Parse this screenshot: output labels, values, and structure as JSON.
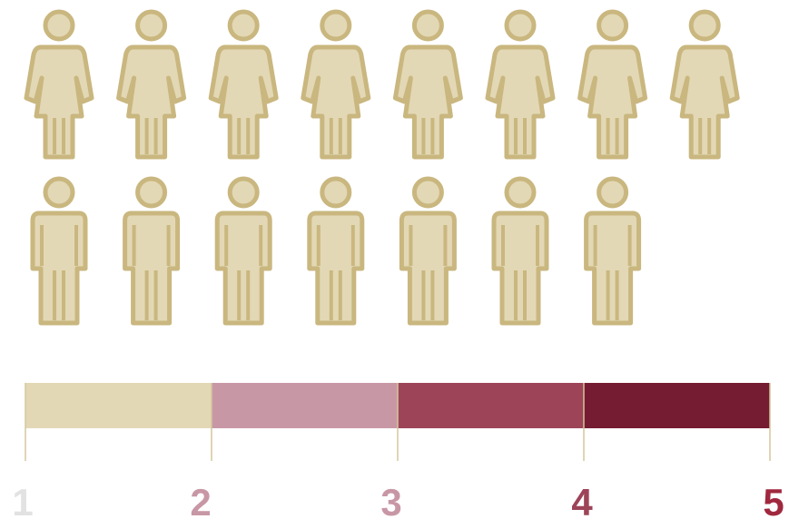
{
  "pictogram": {
    "female": 8,
    "male": 7,
    "fill": "#e3d8b5",
    "outline": "#c9b77f"
  },
  "scale": {
    "colors": [
      "#e3d8b5",
      "#c897a5",
      "#9d4459",
      "#761c32"
    ],
    "labels": [
      {
        "text": "1",
        "color": "#e2e2e2"
      },
      {
        "text": "2",
        "color": "#c897a5"
      },
      {
        "text": "3",
        "color": "#c897a5"
      },
      {
        "text": "4",
        "color": "#9d4459"
      },
      {
        "text": "5",
        "color": "#a0283e"
      }
    ]
  }
}
